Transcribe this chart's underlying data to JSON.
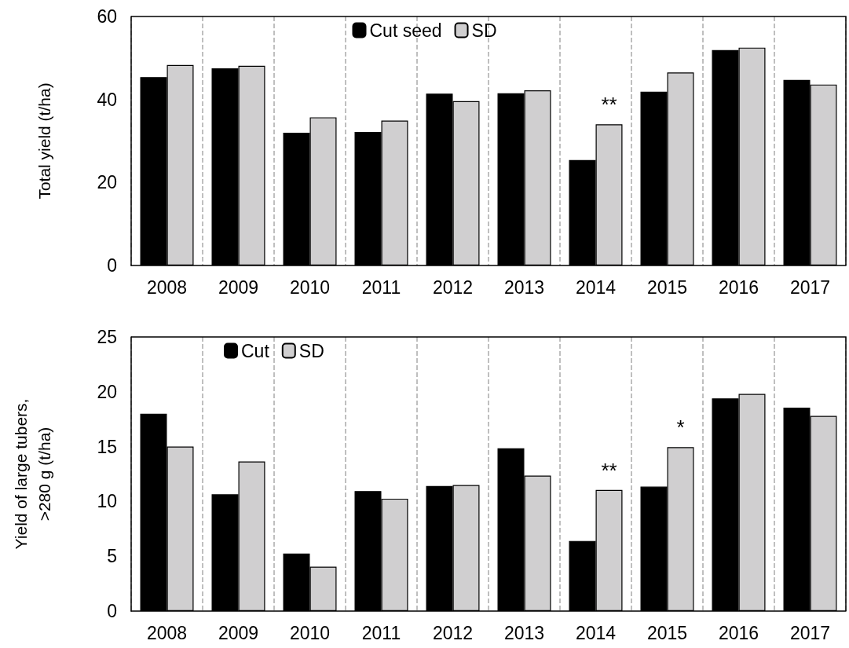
{
  "chart_data": [
    {
      "type": "bar",
      "ylabel": "Total yield (t/ha)",
      "categories": [
        "2008",
        "2009",
        "2010",
        "2011",
        "2012",
        "2013",
        "2014",
        "2015",
        "2016",
        "2017"
      ],
      "series": [
        {
          "name": "Cut seed",
          "color": "#000000",
          "values": [
            45.4,
            47.5,
            32.0,
            32.2,
            41.4,
            41.5,
            25.4,
            41.9,
            51.9,
            44.7
          ]
        },
        {
          "name": "SD",
          "color": "#d0cfd0",
          "values": [
            48.3,
            48.1,
            35.7,
            34.9,
            39.6,
            42.2,
            34.0,
            46.5,
            52.5,
            43.6
          ]
        }
      ],
      "ylim": [
        0,
        60
      ],
      "yticks": [
        0,
        20,
        40,
        60
      ],
      "grid": "x",
      "legend": "top",
      "annotations": [
        {
          "text": "**",
          "x": "2014",
          "y": 34.0
        }
      ]
    },
    {
      "type": "bar",
      "ylabel": "Yield of large tubers,\n>280 g (t/ha)",
      "categories": [
        "2008",
        "2009",
        "2010",
        "2011",
        "2012",
        "2013",
        "2014",
        "2015",
        "2016",
        "2017"
      ],
      "series": [
        {
          "name": "Cut",
          "color": "#000000",
          "values": [
            18.0,
            10.65,
            5.25,
            10.95,
            11.4,
            14.85,
            6.4,
            11.35,
            19.4,
            18.55
          ]
        },
        {
          "name": "SD",
          "color": "#d0cfd0",
          "values": [
            15.0,
            13.65,
            4.05,
            10.25,
            11.5,
            12.35,
            11.05,
            14.95,
            19.8,
            17.8
          ]
        }
      ],
      "ylim": [
        0,
        25
      ],
      "yticks": [
        0,
        5,
        10,
        15,
        20,
        25
      ],
      "grid": "x",
      "legend": "top left",
      "annotations": [
        {
          "text": "**",
          "x": "2014",
          "y": 11.05
        },
        {
          "text": "*",
          "x": "2015",
          "y": 14.95
        }
      ]
    }
  ]
}
